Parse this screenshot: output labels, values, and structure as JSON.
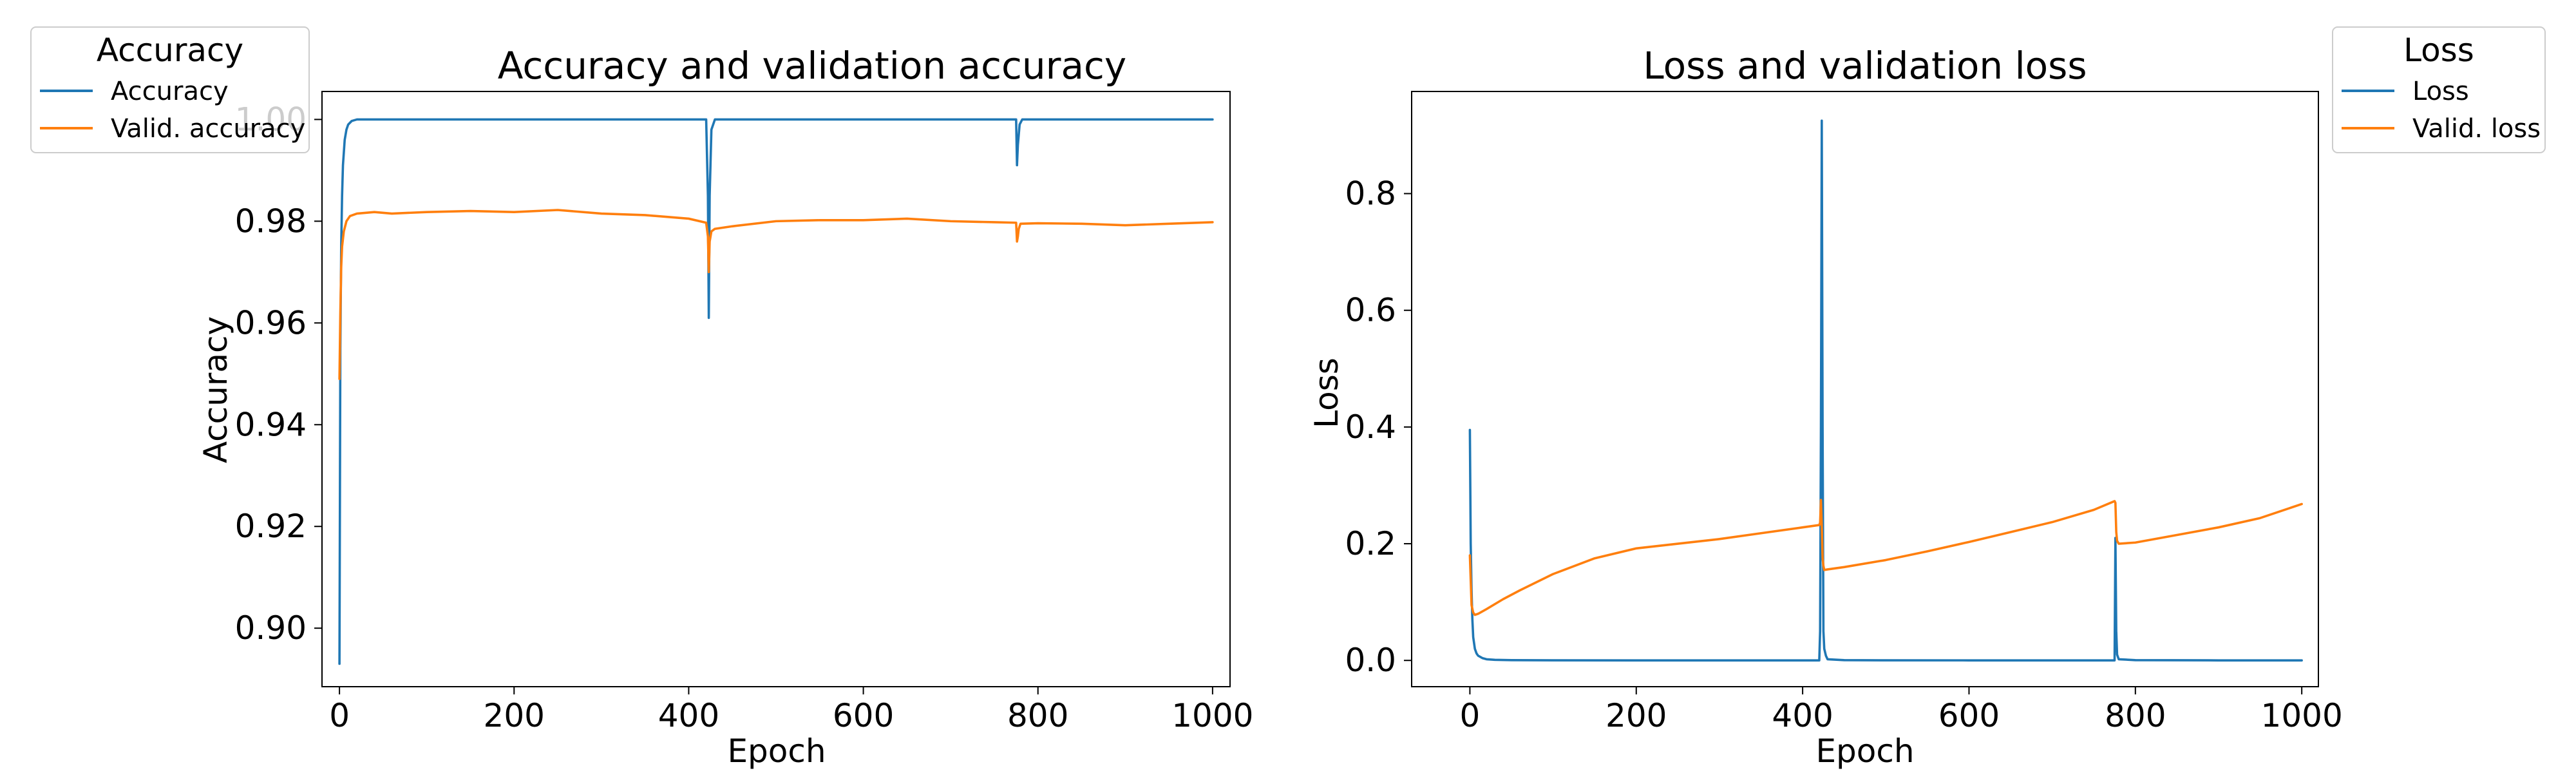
{
  "chart_data": [
    {
      "type": "line",
      "title": "Accuracy and validation accuracy",
      "xlabel": "Epoch",
      "ylabel": "Accuracy",
      "xlim": [
        -20,
        1020
      ],
      "ylim": [
        0.8885,
        1.0055
      ],
      "xticks": [
        0,
        200,
        400,
        600,
        800,
        1000
      ],
      "yticks": [
        0.9,
        0.92,
        0.94,
        0.96,
        0.98,
        1.0
      ],
      "xtick_labels": [
        "0",
        "200",
        "400",
        "600",
        "800",
        "1000"
      ],
      "ytick_labels": [
        "0.90",
        "0.92",
        "0.94",
        "0.96",
        "0.98",
        "1.00"
      ],
      "grid": false,
      "legend": {
        "title": "Accuracy",
        "placement": "outside-top-left",
        "entries": [
          "Accuracy",
          "Valid. accuracy"
        ]
      },
      "series": [
        {
          "name": "Accuracy",
          "color": "#1f77b4",
          "x": [
            0,
            1,
            2,
            3,
            4,
            6,
            8,
            10,
            14,
            20,
            50,
            100,
            200,
            300,
            400,
            420,
            422,
            423,
            424,
            426,
            430,
            450,
            500,
            600,
            700,
            770,
            775,
            776,
            777,
            779,
            782,
            800,
            900,
            1000
          ],
          "y": [
            0.893,
            0.955,
            0.975,
            0.985,
            0.991,
            0.996,
            0.998,
            0.999,
            0.9997,
            1.0,
            1.0,
            1.0,
            1.0,
            1.0,
            1.0,
            1.0,
            0.985,
            0.961,
            0.985,
            0.998,
            1.0,
            1.0,
            1.0,
            1.0,
            1.0,
            1.0,
            1.0,
            0.991,
            0.995,
            0.999,
            1.0,
            1.0,
            1.0,
            1.0
          ]
        },
        {
          "name": "Valid. accuracy",
          "color": "#ff7f0e",
          "x": [
            0,
            1,
            2,
            3,
            5,
            8,
            12,
            20,
            40,
            60,
            100,
            150,
            200,
            250,
            300,
            350,
            400,
            420,
            422,
            423,
            424,
            426,
            430,
            450,
            500,
            550,
            600,
            650,
            700,
            750,
            775,
            776,
            777,
            778,
            780,
            800,
            850,
            900,
            950,
            1000
          ],
          "y": [
            0.949,
            0.962,
            0.971,
            0.975,
            0.978,
            0.98,
            0.981,
            0.9815,
            0.9818,
            0.9815,
            0.9818,
            0.982,
            0.9818,
            0.9822,
            0.9815,
            0.9812,
            0.9805,
            0.9797,
            0.977,
            0.97,
            0.976,
            0.978,
            0.9785,
            0.979,
            0.98,
            0.9802,
            0.9802,
            0.9805,
            0.98,
            0.9798,
            0.9797,
            0.976,
            0.977,
            0.9785,
            0.9795,
            0.9796,
            0.9795,
            0.9792,
            0.9795,
            0.9798
          ]
        }
      ]
    },
    {
      "type": "line",
      "title": "Loss and validation loss",
      "xlabel": "Epoch",
      "ylabel": "Loss",
      "xlim": [
        -70,
        1020
      ],
      "ylim": [
        -0.045,
        0.975
      ],
      "xticks": [
        0,
        200,
        400,
        600,
        800,
        1000
      ],
      "yticks": [
        0.0,
        0.2,
        0.4,
        0.6,
        0.8
      ],
      "xtick_labels": [
        "0",
        "200",
        "400",
        "600",
        "800",
        "1000"
      ],
      "ytick_labels": [
        "0.0",
        "0.2",
        "0.4",
        "0.6",
        "0.8"
      ],
      "grid": false,
      "legend": {
        "title": "Loss",
        "placement": "outside-top-right",
        "entries": [
          "Loss",
          "Valid. loss"
        ]
      },
      "series": [
        {
          "name": "Loss",
          "color": "#1f77b4",
          "x": [
            0,
            1,
            2,
            3,
            4,
            6,
            8,
            10,
            15,
            20,
            30,
            50,
            100,
            200,
            300,
            400,
            420,
            421,
            422,
            423,
            424,
            425,
            426,
            428,
            430,
            450,
            500,
            600,
            700,
            770,
            775,
            776,
            777,
            778,
            780,
            800,
            900,
            1000
          ],
          "y": [
            0.395,
            0.2,
            0.12,
            0.07,
            0.04,
            0.02,
            0.012,
            0.008,
            0.004,
            0.002,
            0.001,
            0.0005,
            0.0002,
            0.0001,
            0.0001,
            0.0001,
            0.0001,
            0.05,
            0.4,
            0.925,
            0.4,
            0.05,
            0.02,
            0.008,
            0.002,
            0.0005,
            0.0002,
            0.0001,
            0.0001,
            0.0001,
            0.0001,
            0.21,
            0.05,
            0.01,
            0.002,
            0.0005,
            0.0001,
            0.0001
          ]
        },
        {
          "name": "Valid. loss",
          "color": "#ff7f0e",
          "x": [
            0,
            2,
            4,
            6,
            10,
            20,
            40,
            60,
            100,
            150,
            200,
            250,
            300,
            350,
            400,
            420,
            421,
            422,
            423,
            424,
            425,
            426,
            430,
            450,
            500,
            550,
            600,
            650,
            700,
            750,
            775,
            776,
            777,
            778,
            780,
            800,
            850,
            900,
            950,
            1000
          ],
          "y": [
            0.18,
            0.095,
            0.082,
            0.078,
            0.08,
            0.088,
            0.105,
            0.12,
            0.148,
            0.175,
            0.192,
            0.2,
            0.208,
            0.218,
            0.228,
            0.232,
            0.236,
            0.275,
            0.23,
            0.175,
            0.162,
            0.155,
            0.156,
            0.16,
            0.172,
            0.187,
            0.203,
            0.22,
            0.237,
            0.258,
            0.273,
            0.27,
            0.22,
            0.205,
            0.2,
            0.202,
            0.215,
            0.228,
            0.244,
            0.268
          ]
        }
      ]
    }
  ]
}
